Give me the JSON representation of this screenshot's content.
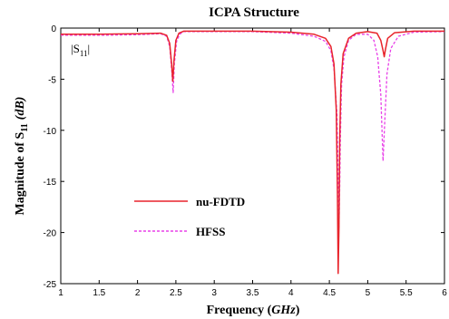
{
  "chart_data": {
    "type": "line",
    "title": "ICPA Structure",
    "xlabel_main": "Frequency (",
    "xlabel_unit": "GHz",
    "xlabel_close": ")",
    "ylabel_main": "Magnitude of S",
    "ylabel_sub": "11",
    "ylabel_unit": "(dB)",
    "annotation_main": "|S",
    "annotation_sub": "11",
    "annotation_close": "|",
    "xlim": [
      1,
      6
    ],
    "ylim": [
      -25,
      0
    ],
    "x_ticks": [
      1,
      1.5,
      2,
      2.5,
      3,
      3.5,
      4,
      4.5,
      5,
      5.5,
      6
    ],
    "x_tick_labels": [
      "1",
      "1.5",
      "2",
      "2.5",
      "3",
      "3.5",
      "4",
      "4.5",
      "5",
      "5.5",
      "6"
    ],
    "y_ticks": [
      0,
      -5,
      -10,
      -15,
      -20,
      -25
    ],
    "y_tick_labels": [
      "0",
      "-5",
      "-10",
      "-15",
      "-20",
      "-25"
    ],
    "legend_position": "lower-left",
    "series": [
      {
        "name": "nu-FDTD",
        "color": "#e8242b",
        "style": "solid",
        "x": [
          1.0,
          1.5,
          2.0,
          2.3,
          2.38,
          2.42,
          2.445,
          2.46,
          2.475,
          2.5,
          2.54,
          2.6,
          3.0,
          3.5,
          4.0,
          4.3,
          4.45,
          4.52,
          4.56,
          4.59,
          4.605,
          4.615,
          4.625,
          4.635,
          4.65,
          4.68,
          4.75,
          4.85,
          5.0,
          5.12,
          5.17,
          5.2,
          5.215,
          5.23,
          5.26,
          5.35,
          5.6,
          6.0
        ],
        "y": [
          -0.6,
          -0.6,
          -0.55,
          -0.5,
          -0.7,
          -1.5,
          -3.5,
          -5.2,
          -3.2,
          -1.2,
          -0.5,
          -0.3,
          -0.3,
          -0.3,
          -0.4,
          -0.6,
          -1.0,
          -1.8,
          -3.5,
          -8.0,
          -16.0,
          -24.0,
          -19.5,
          -11.0,
          -5.5,
          -2.5,
          -1.0,
          -0.5,
          -0.35,
          -0.5,
          -1.2,
          -2.2,
          -2.8,
          -2.1,
          -1.0,
          -0.45,
          -0.3,
          -0.3
        ]
      },
      {
        "name": "HFSS",
        "color": "#e840e8",
        "style": "dashed",
        "x": [
          1.0,
          1.5,
          2.0,
          2.3,
          2.38,
          2.42,
          2.445,
          2.465,
          2.48,
          2.51,
          2.55,
          2.6,
          3.0,
          3.5,
          4.0,
          4.3,
          4.45,
          4.52,
          4.56,
          4.6,
          4.615,
          4.625,
          4.635,
          4.645,
          4.66,
          4.69,
          4.75,
          4.85,
          5.0,
          5.08,
          5.13,
          5.17,
          5.2,
          5.22,
          5.25,
          5.3,
          5.4,
          5.6,
          6.0
        ],
        "y": [
          -0.7,
          -0.7,
          -0.65,
          -0.55,
          -0.8,
          -1.8,
          -4.0,
          -6.3,
          -3.5,
          -1.3,
          -0.6,
          -0.35,
          -0.35,
          -0.35,
          -0.5,
          -0.8,
          -1.3,
          -2.2,
          -4.0,
          -8.5,
          -14.5,
          -19.5,
          -15.5,
          -10.0,
          -5.5,
          -2.8,
          -1.2,
          -0.6,
          -0.6,
          -1.2,
          -2.8,
          -6.5,
          -13.0,
          -9.5,
          -4.5,
          -2.0,
          -0.8,
          -0.4,
          -0.35
        ]
      }
    ]
  }
}
